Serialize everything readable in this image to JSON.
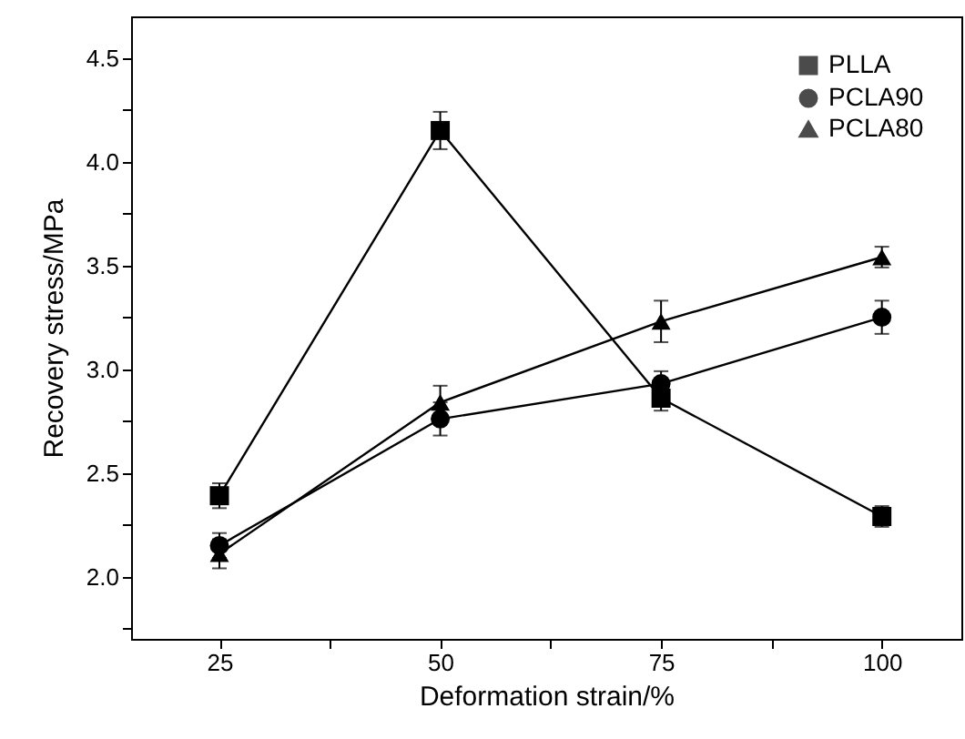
{
  "chart_data": {
    "type": "line",
    "xlabel": "Deformation strain/%",
    "ylabel": "Recovery stress/MPa",
    "x": [
      25,
      50,
      75,
      100
    ],
    "series": [
      {
        "name": "PLLA",
        "color": "#000000",
        "marker": "square",
        "values": [
          2.39,
          4.15,
          2.86,
          2.29
        ],
        "errors": [
          0.06,
          0.09,
          0.06,
          0.05
        ]
      },
      {
        "name": "PCLA90",
        "color": "#000000",
        "marker": "circle",
        "values": [
          2.15,
          2.76,
          2.93,
          3.25
        ],
        "errors": [
          0.06,
          0.08,
          0.06,
          0.08
        ]
      },
      {
        "name": "PCLA80",
        "color": "#000000",
        "marker": "triangle",
        "values": [
          2.11,
          2.84,
          3.23,
          3.54
        ],
        "errors": [
          0.07,
          0.08,
          0.1,
          0.05
        ]
      }
    ],
    "xlim": [
      15,
      109
    ],
    "ylim": [
      1.7,
      4.7
    ],
    "xticks": [
      25,
      {
        "value": 37.5,
        "label": null
      },
      50,
      {
        "value": 62.5,
        "label": null
      },
      75,
      {
        "value": 87.5,
        "label": null
      },
      100
    ],
    "yticks": [
      {
        "value": 1.75,
        "label": null
      },
      "2.0",
      {
        "value": 2.25,
        "label": null
      },
      {
        "value": 2.5,
        "label": "2.5"
      },
      {
        "value": 2.75,
        "label": null
      },
      {
        "value": 3.0,
        "label": "3.0"
      },
      {
        "value": 3.25,
        "label": null
      },
      {
        "value": 3.5,
        "label": "3.5"
      },
      {
        "value": 3.75,
        "label": null
      },
      {
        "value": 4.0,
        "label": "4.0"
      },
      {
        "value": 4.25,
        "label": null
      },
      {
        "value": 4.5,
        "label": "4.5"
      }
    ],
    "grid": false,
    "legend": "top right",
    "line_style": "solid"
  }
}
